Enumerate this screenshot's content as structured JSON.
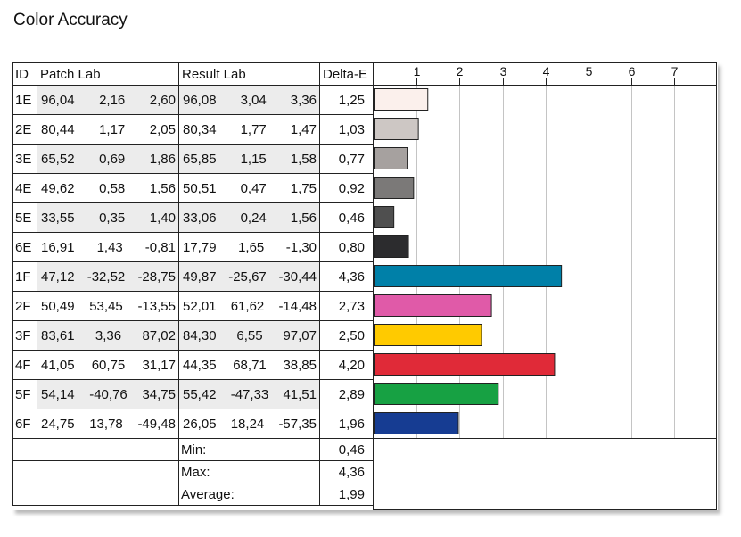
{
  "title": "Color Accuracy",
  "headers": {
    "id": "ID",
    "patch": "Patch Lab",
    "result": "Result Lab",
    "delta": "Delta-E"
  },
  "chart_data": {
    "type": "bar",
    "orientation": "horizontal",
    "title": "Color Accuracy",
    "categories": [
      "1E",
      "2E",
      "3E",
      "4E",
      "5E",
      "6E",
      "1F",
      "2F",
      "3F",
      "4F",
      "5F",
      "6F"
    ],
    "values": [
      1.25,
      1.03,
      0.77,
      0.92,
      0.46,
      0.8,
      4.36,
      2.73,
      2.5,
      4.2,
      2.89,
      1.96
    ],
    "bar_colors": [
      "#fbf0ec",
      "#cdc7c4",
      "#a6a19f",
      "#7b7978",
      "#4f4f4f",
      "#2c2c2e",
      "#0080a8",
      "#e05aa8",
      "#ffca00",
      "#e02a38",
      "#17a143",
      "#163c92"
    ],
    "xticks": [
      "1",
      "2",
      "3",
      "4",
      "5",
      "6",
      "7"
    ],
    "xlim": [
      0,
      8
    ],
    "grid": true,
    "legend": "none"
  },
  "rows": [
    {
      "id": "1E",
      "patch": [
        "96,04",
        "2,16",
        "2,60"
      ],
      "result": [
        "96,08",
        "3,04",
        "3,36"
      ],
      "de": "1,25"
    },
    {
      "id": "2E",
      "patch": [
        "80,44",
        "1,17",
        "2,05"
      ],
      "result": [
        "80,34",
        "1,77",
        "1,47"
      ],
      "de": "1,03"
    },
    {
      "id": "3E",
      "patch": [
        "65,52",
        "0,69",
        "1,86"
      ],
      "result": [
        "65,85",
        "1,15",
        "1,58"
      ],
      "de": "0,77"
    },
    {
      "id": "4E",
      "patch": [
        "49,62",
        "0,58",
        "1,56"
      ],
      "result": [
        "50,51",
        "0,47",
        "1,75"
      ],
      "de": "0,92"
    },
    {
      "id": "5E",
      "patch": [
        "33,55",
        "0,35",
        "1,40"
      ],
      "result": [
        "33,06",
        "0,24",
        "1,56"
      ],
      "de": "0,46"
    },
    {
      "id": "6E",
      "patch": [
        "16,91",
        "1,43",
        "-0,81"
      ],
      "result": [
        "17,79",
        "1,65",
        "-1,30"
      ],
      "de": "0,80"
    },
    {
      "id": "1F",
      "patch": [
        "47,12",
        "-32,52",
        "-28,75"
      ],
      "result": [
        "49,87",
        "-25,67",
        "-30,44"
      ],
      "de": "4,36"
    },
    {
      "id": "2F",
      "patch": [
        "50,49",
        "53,45",
        "-13,55"
      ],
      "result": [
        "52,01",
        "61,62",
        "-14,48"
      ],
      "de": "2,73"
    },
    {
      "id": "3F",
      "patch": [
        "83,61",
        "3,36",
        "87,02"
      ],
      "result": [
        "84,30",
        "6,55",
        "97,07"
      ],
      "de": "2,50"
    },
    {
      "id": "4F",
      "patch": [
        "41,05",
        "60,75",
        "31,17"
      ],
      "result": [
        "44,35",
        "68,71",
        "38,85"
      ],
      "de": "4,20"
    },
    {
      "id": "5F",
      "patch": [
        "54,14",
        "-40,76",
        "34,75"
      ],
      "result": [
        "55,42",
        "-47,33",
        "41,51"
      ],
      "de": "2,89"
    },
    {
      "id": "6F",
      "patch": [
        "24,75",
        "13,78",
        "-49,48"
      ],
      "result": [
        "26,05",
        "18,24",
        "-57,35"
      ],
      "de": "1,96"
    }
  ],
  "summary": [
    {
      "label": "Min:",
      "value": "0,46"
    },
    {
      "label": "Max:",
      "value": "4,36"
    },
    {
      "label": "Average:",
      "value": "1,99"
    }
  ]
}
